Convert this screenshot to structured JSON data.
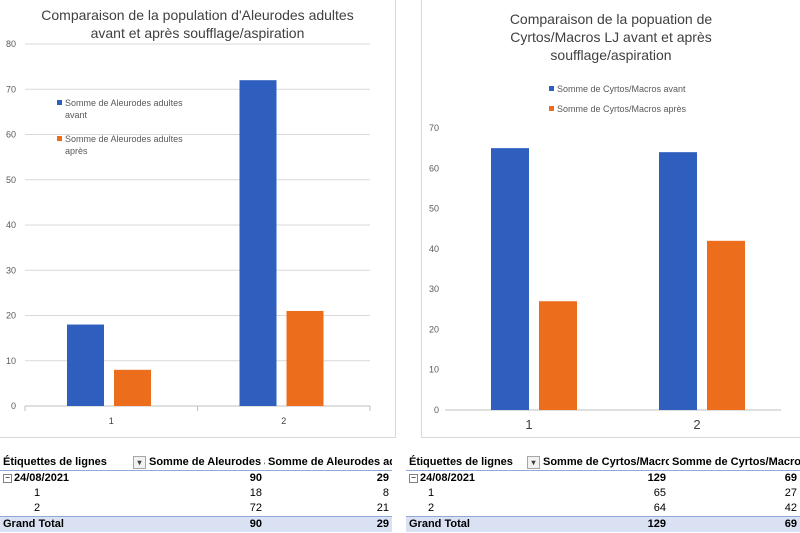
{
  "chart_data": [
    {
      "type": "bar",
      "title": "Comparaison de la population d'Aleurodes adultes\navant et après soufflage/aspiration",
      "categories": [
        "1",
        "2"
      ],
      "series": [
        {
          "name": "Somme de Aleurodes adultes avant",
          "values": [
            18,
            72
          ],
          "color": "#2e5fbe"
        },
        {
          "name": "Somme de Aleurodes adultes après",
          "values": [
            8,
            21
          ],
          "color": "#ec6d1c"
        }
      ],
      "ylim": [
        0,
        80
      ],
      "yticks": [
        0,
        10,
        20,
        30,
        40,
        50,
        60,
        70,
        80
      ],
      "grid": true,
      "legend_position": "top-left"
    },
    {
      "type": "bar",
      "title": "Comparaison de la popuation de\nCyrtos/Macros LJ avant et après\nsoufflage/aspiration",
      "categories": [
        "1",
        "2"
      ],
      "series": [
        {
          "name": "Somme de Cyrtos/Macros avant",
          "values": [
            65,
            64
          ],
          "color": "#2e5fbe"
        },
        {
          "name": "Somme de Cyrtos/Macros après",
          "values": [
            27,
            42
          ],
          "color": "#ec6d1c"
        }
      ],
      "ylim": [
        0,
        70
      ],
      "yticks": [
        0,
        10,
        20,
        30,
        40,
        50,
        60,
        70
      ],
      "grid": false,
      "legend_position": "top-left"
    }
  ],
  "pivot_left": {
    "header": [
      "Étiquettes de lignes",
      "Somme de Aleurodes adul",
      "Somme de Aleurodes adul"
    ],
    "group": {
      "label": "24/08/2021",
      "values": [
        "90",
        "29"
      ]
    },
    "rows": [
      {
        "label": "1",
        "values": [
          "18",
          "8"
        ]
      },
      {
        "label": "2",
        "values": [
          "72",
          "21"
        ]
      }
    ],
    "total": {
      "label": "Grand Total",
      "values": [
        "90",
        "29"
      ]
    }
  },
  "pivot_right": {
    "header": [
      "Étiquettes de lignes",
      "Somme de Cyrtos/Macros",
      "Somme de Cyrtos/Macros l"
    ],
    "group": {
      "label": "24/08/2021",
      "values": [
        "129",
        "69"
      ]
    },
    "rows": [
      {
        "label": "1",
        "values": [
          "65",
          "27"
        ]
      },
      {
        "label": "2",
        "values": [
          "64",
          "42"
        ]
      }
    ],
    "total": {
      "label": "Grand Total",
      "values": [
        "129",
        "69"
      ]
    }
  },
  "icons": {
    "filter": "filter-dropdown-icon",
    "collapse": "collapse-minus-icon"
  }
}
